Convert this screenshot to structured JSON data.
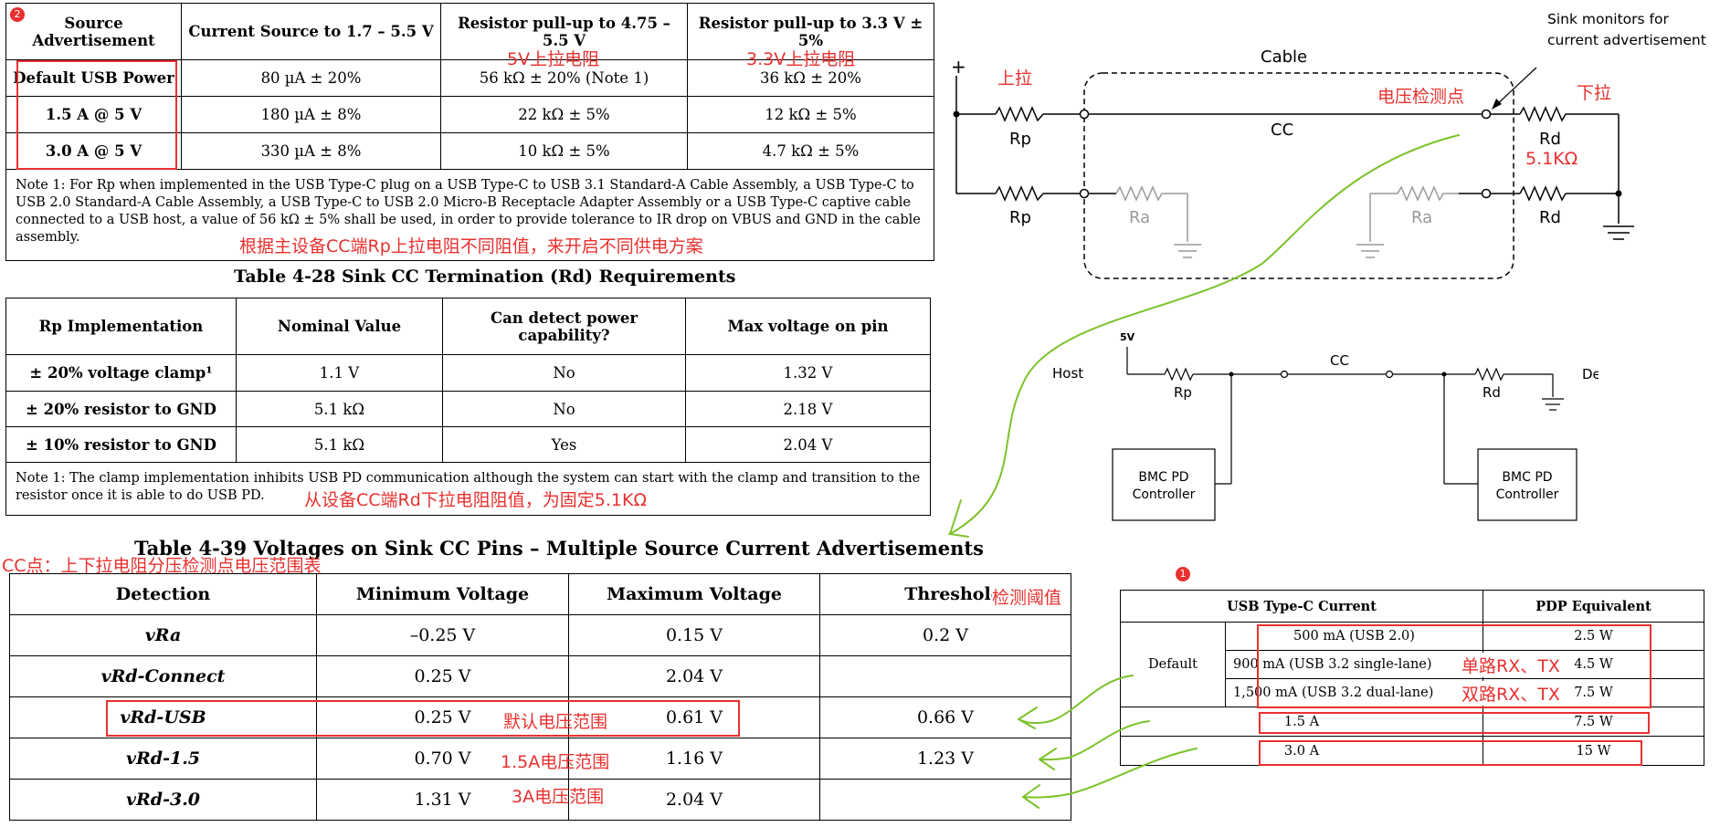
{
  "badges": {
    "b1": "1",
    "b2": "2"
  },
  "table_source": {
    "headers": [
      "Source Advertisement",
      "Current Source to 1.7 – 5.5 V",
      "Resistor pull-up to 4.75 – 5.5 V",
      "Resistor pull-up to 3.3 V ± 5%"
    ],
    "rows": [
      [
        "Default USB Power",
        "80 µA ± 20%",
        "56 kΩ ± 20%  (Note 1)",
        "36 kΩ ± 20%"
      ],
      [
        "1.5 A @ 5 V",
        "180 µA ± 8%",
        "22 kΩ ± 5%",
        "12 kΩ ± 5%"
      ],
      [
        "3.0 A @ 5 V",
        "330 µA ± 8%",
        "10 kΩ ± 5%",
        "4.7 kΩ ± 5%"
      ]
    ],
    "note": "Note 1:  For Rp when implemented in the USB Type-C plug on a USB Type-C to USB 3.1 Standard-A Cable Assembly, a USB Type-C to USB 2.0 Standard-A Cable Assembly, a USB Type-C to USB 2.0 Micro-B Receptacle Adapter Assembly or a USB Type-C captive cable connected to a USB host, a value of 56 kΩ ± 5% shall be used, in order to provide tolerance to IR drop on VBUS and GND in the cable assembly.",
    "annot_5v": "5V上拉电阻",
    "annot_33v": "3.3V上拉电阻",
    "annot_note": "根据主设备CC端Rp上拉电阻不同阻值，来开启不同供电方案"
  },
  "table_rd": {
    "caption": "Table 4-28  Sink CC Termination (Rd) Requirements",
    "headers": [
      "Rp Implementation",
      "Nominal Value",
      "Can detect power capability?",
      "Max voltage on pin"
    ],
    "rows": [
      [
        "± 20% voltage clamp¹",
        "1.1 V",
        "No",
        "1.32 V"
      ],
      [
        "± 20% resistor to GND",
        "5.1 kΩ",
        "No",
        "2.18 V"
      ],
      [
        "± 10% resistor to GND",
        "5.1 kΩ",
        "Yes",
        "2.04 V"
      ]
    ],
    "note": "Note 1:  The clamp implementation inhibits USB PD communication although the system can start with the clamp and transition to the resistor once it is able to do USB PD.",
    "annot_note": "从设备CC端Rd下拉电阻阻值，为固定5.1KΩ"
  },
  "table_voltages": {
    "caption": "Table 4-39  Voltages on Sink CC Pins – Multiple Source Current Advertisements",
    "annot_caption": "CC点：上下拉电阻分压检测点电压范围表",
    "headers": [
      "Detection",
      "Minimum Voltage",
      "Maximum Voltage",
      "Threshold"
    ],
    "annot_threshold": "检测阈值",
    "rows": [
      [
        "vRa",
        "–0.25 V",
        "0.15 V",
        "0.2 V"
      ],
      [
        "vRd-Connect",
        "0.25 V",
        "2.04 V",
        ""
      ],
      [
        "vRd-USB",
        "0.25 V",
        "0.61 V",
        "0.66 V"
      ],
      [
        "vRd-1.5",
        "0.70 V",
        "1.16 V",
        "1.23 V"
      ],
      [
        "vRd-3.0",
        "1.31 V",
        "2.04 V",
        ""
      ]
    ],
    "annot_rows": [
      "默认电压范围",
      "1.5A电压范围",
      "3A电压范围"
    ]
  },
  "table_pdp": {
    "headers": [
      "USB Type-C Current",
      "PDP Equivalent"
    ],
    "default_label": "Default",
    "rows": [
      {
        "current": "500 mA (USB 2.0)",
        "pdp": "2.5 W"
      },
      {
        "current": "900 mA (USB 3.2 single-lane)",
        "pdp": "4.5 W"
      },
      {
        "current": "1,500 mA (USB 3.2 dual-lane)",
        "pdp": "7.5 W"
      },
      {
        "current": "1.5 A",
        "pdp": "7.5 W"
      },
      {
        "current": "3.0 A",
        "pdp": "15 W"
      }
    ],
    "annot_single": "单路RX、TX",
    "annot_dual": "双路RX、TX"
  },
  "cable_diagram": {
    "plus": "+",
    "cable": "Cable",
    "sink_note_1": "Sink monitors for",
    "sink_note_2": "current advertisement",
    "rp1": "Rp",
    "rp2": "Rp",
    "cc": "CC",
    "ra1": "Ra",
    "ra2": "Ra",
    "rd1": "Rd",
    "rd2": "Rd",
    "annot_pullup": "上拉",
    "annot_detect": "电压检测点",
    "annot_pulldown": "下拉",
    "annot_rd_value": "5.1KΩ"
  },
  "host_diagram": {
    "v5": "5V",
    "host": "Host",
    "cc": "CC",
    "device": "Device",
    "rp": "Rp",
    "rd": "Rd",
    "bmc_left_1": "BMC PD",
    "bmc_left_2": "Controller",
    "bmc_right_1": "BMC PD",
    "bmc_right_2": "Controller"
  },
  "colors": {
    "annotation": "#e8312f",
    "arrow": "#7cc22a"
  }
}
